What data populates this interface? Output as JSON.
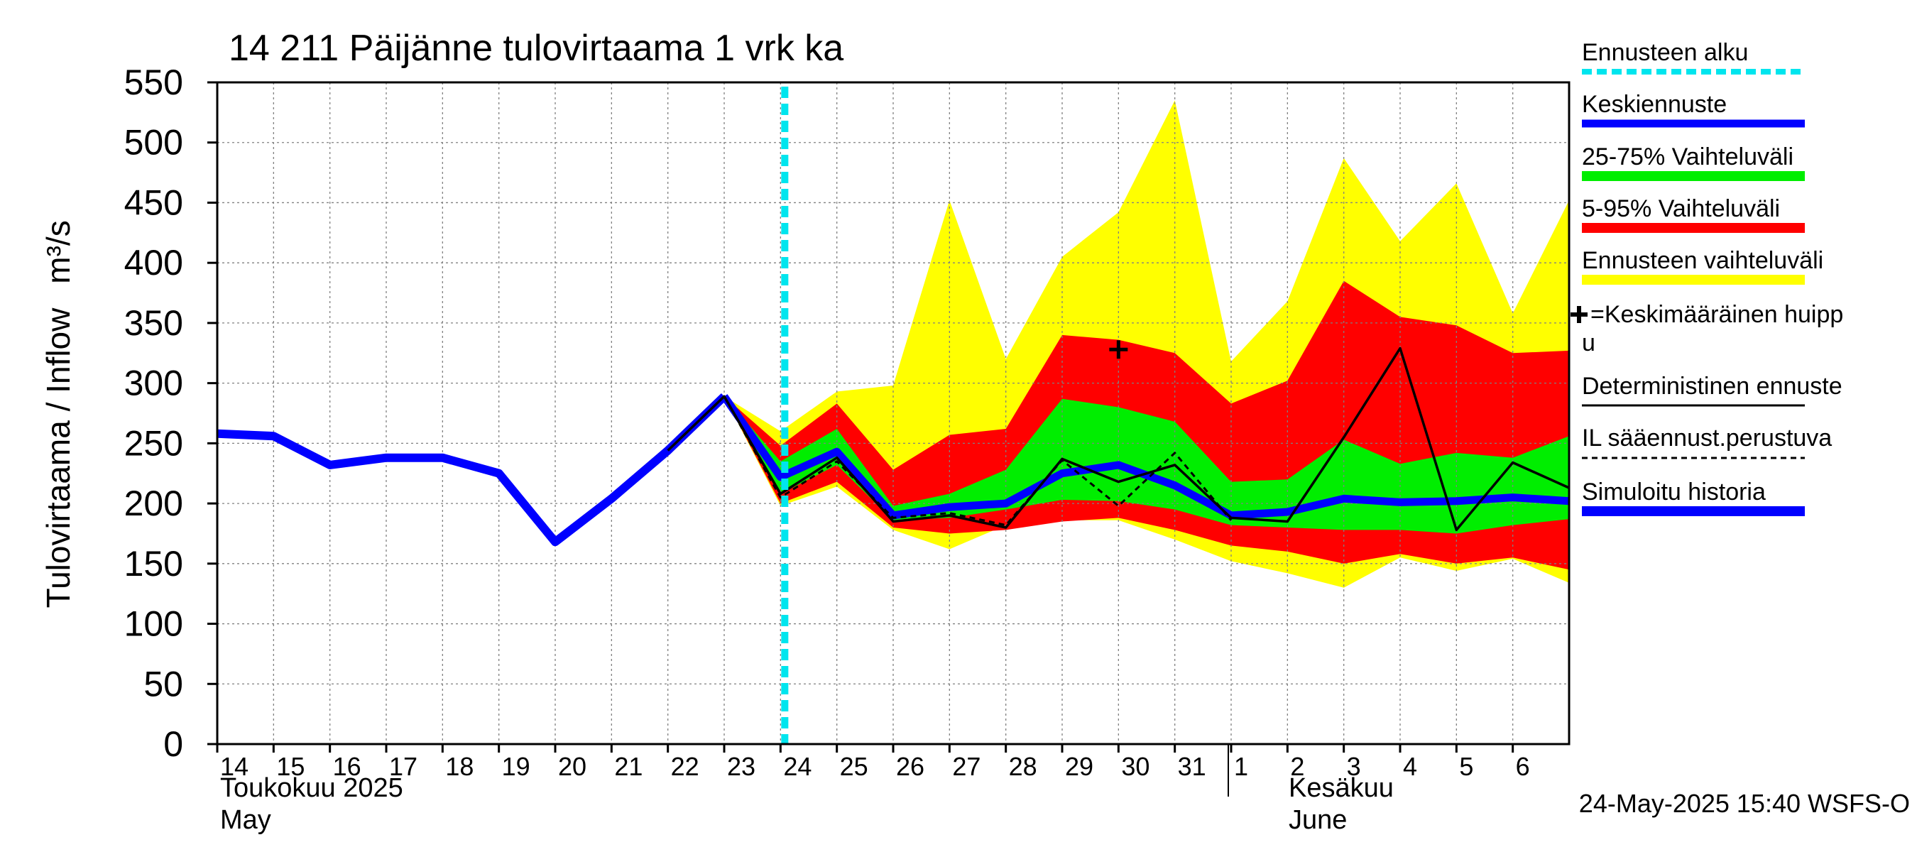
{
  "chart_data": {
    "type": "area",
    "title": "14 211 Päijänne tulovirtaama 1 vrk ka",
    "ylabel": "Tulovirtaama / Inflow",
    "yunit": "m³/s",
    "ylim": [
      0,
      550
    ],
    "yticks": [
      0,
      50,
      100,
      150,
      200,
      250,
      300,
      350,
      400,
      450,
      500,
      550
    ],
    "xlim": [
      0,
      24
    ],
    "grid": true,
    "x_tick_labels": [
      "14",
      "15",
      "16",
      "17",
      "18",
      "19",
      "20",
      "21",
      "22",
      "23",
      "24",
      "25",
      "26",
      "27",
      "28",
      "29",
      "30",
      "31",
      "1",
      "2",
      "3",
      "4",
      "5",
      "6"
    ],
    "month_labels": [
      {
        "fi": "Toukokuu  2025",
        "en": "May",
        "x": 0
      },
      {
        "fi": "Kesäkuu",
        "en": "June",
        "x": 19
      }
    ],
    "month_divider_x": 18,
    "forecast_start_x": 10,
    "timestamp": "24-May-2025 15:40 WSFS-O",
    "legend": {
      "forecast_start": "Ennusteen alku",
      "mean_forecast": "Keskiennuste",
      "range_25_75": "25-75% Vaihteluväli",
      "range_5_95": "5-95% Vaihteluväli",
      "forecast_range": "Ennusteen vaihteluväli",
      "peak_line1": "=Keskimääräinen huipp",
      "peak_line2": "u",
      "deterministic": "Deterministinen ennuste",
      "weather_based": "IL sääennust.perustuva",
      "simulated": "Simuloitu historia"
    },
    "colors": {
      "forecast_start": "#00e5ee",
      "mean": "#0000ff",
      "range_25_75": "#00ee00",
      "range_5_95": "#ff0000",
      "forecast_range": "#ffff00",
      "line": "#000000",
      "grid": "#808080"
    },
    "band_x": [
      9,
      10,
      11,
      12,
      13,
      14,
      15,
      16,
      17,
      18,
      19,
      20,
      21,
      22,
      23,
      24
    ],
    "band_min": [
      289,
      198,
      214,
      178,
      162,
      182,
      186,
      186,
      170,
      152,
      142,
      130,
      155,
      144,
      154,
      134
    ],
    "band_max": [
      289,
      260,
      293,
      298,
      452,
      320,
      405,
      442,
      535,
      318,
      368,
      487,
      418,
      466,
      358,
      452
    ],
    "band_p5": [
      289,
      200,
      218,
      180,
      175,
      178,
      185,
      188,
      178,
      165,
      160,
      150,
      158,
      150,
      155,
      145
    ],
    "band_p95": [
      289,
      248,
      283,
      228,
      257,
      262,
      340,
      336,
      325,
      283,
      302,
      385,
      355,
      348,
      325,
      327
    ],
    "band_p25": [
      289,
      208,
      232,
      186,
      188,
      195,
      203,
      202,
      195,
      182,
      180,
      178,
      178,
      175,
      182,
      187
    ],
    "band_p75": [
      289,
      235,
      262,
      198,
      208,
      228,
      287,
      280,
      268,
      218,
      220,
      253,
      233,
      242,
      238,
      256
    ],
    "simulated_x": [
      0,
      1,
      2,
      3,
      4,
      5,
      6,
      7,
      8,
      9
    ],
    "simulated": [
      258,
      256,
      232,
      238,
      238,
      225,
      168,
      204,
      244,
      289
    ],
    "mean_x": [
      9,
      10,
      11,
      12,
      13,
      14,
      15,
      16,
      17,
      18,
      19,
      20,
      21,
      22,
      23,
      24
    ],
    "mean": [
      289,
      222,
      243,
      190,
      197,
      200,
      225,
      232,
      215,
      190,
      193,
      204,
      201,
      202,
      205,
      202
    ],
    "deterministic_x": [
      8,
      9,
      10,
      11,
      12,
      13,
      14,
      15,
      16,
      17,
      18,
      19,
      20,
      21,
      22,
      23,
      24
    ],
    "deterministic": [
      244,
      289,
      208,
      238,
      185,
      190,
      180,
      237,
      218,
      232,
      188,
      185,
      255,
      329,
      178,
      234,
      213
    ],
    "weather_x": [
      8,
      9,
      10,
      11,
      12,
      13,
      14,
      15,
      16,
      17,
      18
    ],
    "weather": [
      244,
      289,
      205,
      235,
      188,
      192,
      182,
      236,
      198,
      242,
      186
    ],
    "peak": {
      "x": 16,
      "y": 328
    }
  }
}
